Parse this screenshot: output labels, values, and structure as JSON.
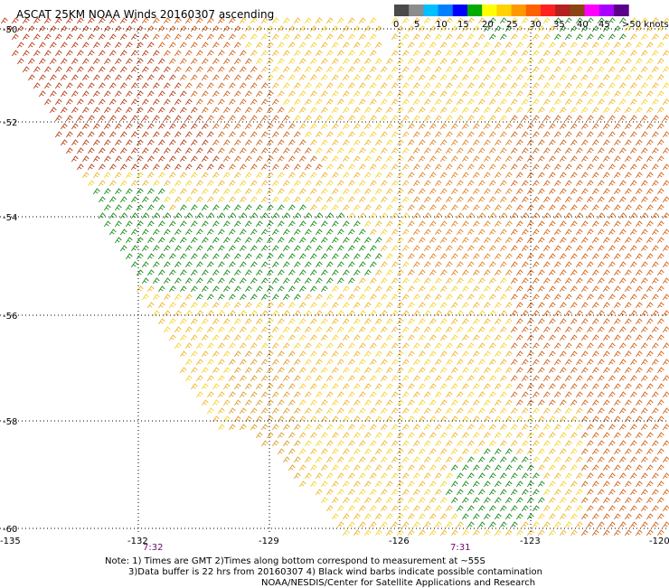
{
  "title": "ASCAT 25KM NOAA Winds 20160307 ascending",
  "legend": {
    "ticks": [
      "0",
      "5",
      "10",
      "15",
      "20",
      "25",
      "30",
      "35",
      "40",
      "45",
      ">50 knots"
    ],
    "colors": [
      "#4a4a4a",
      "#8c8c8c",
      "#00bfff",
      "#0080ff",
      "#0000ff",
      "#00aa00",
      "#ffff00",
      "#ffd200",
      "#ff9900",
      "#ff6000",
      "#ff2020",
      "#b52020",
      "#8b4513",
      "#ff00ff",
      "#aa00ff",
      "#5a008a"
    ]
  },
  "axes": {
    "lon_labels": [
      "-135",
      "-132",
      "-129",
      "-126",
      "-123",
      "-120"
    ],
    "lat_labels": [
      "-50",
      "-52",
      "-54",
      "-56",
      "-58",
      "-60"
    ]
  },
  "times": [
    "7:32",
    "7:31"
  ],
  "notes": [
    "Note: 1) Times are GMT 2)Times along bottom correspond to measurement at ~55S",
    "3)Data buffer is 22 hrs from 20160307 4) Black wind barbs indicate possible contamination",
    "NOAA/NESDIS/Center for Satellite Applications and Research"
  ]
}
